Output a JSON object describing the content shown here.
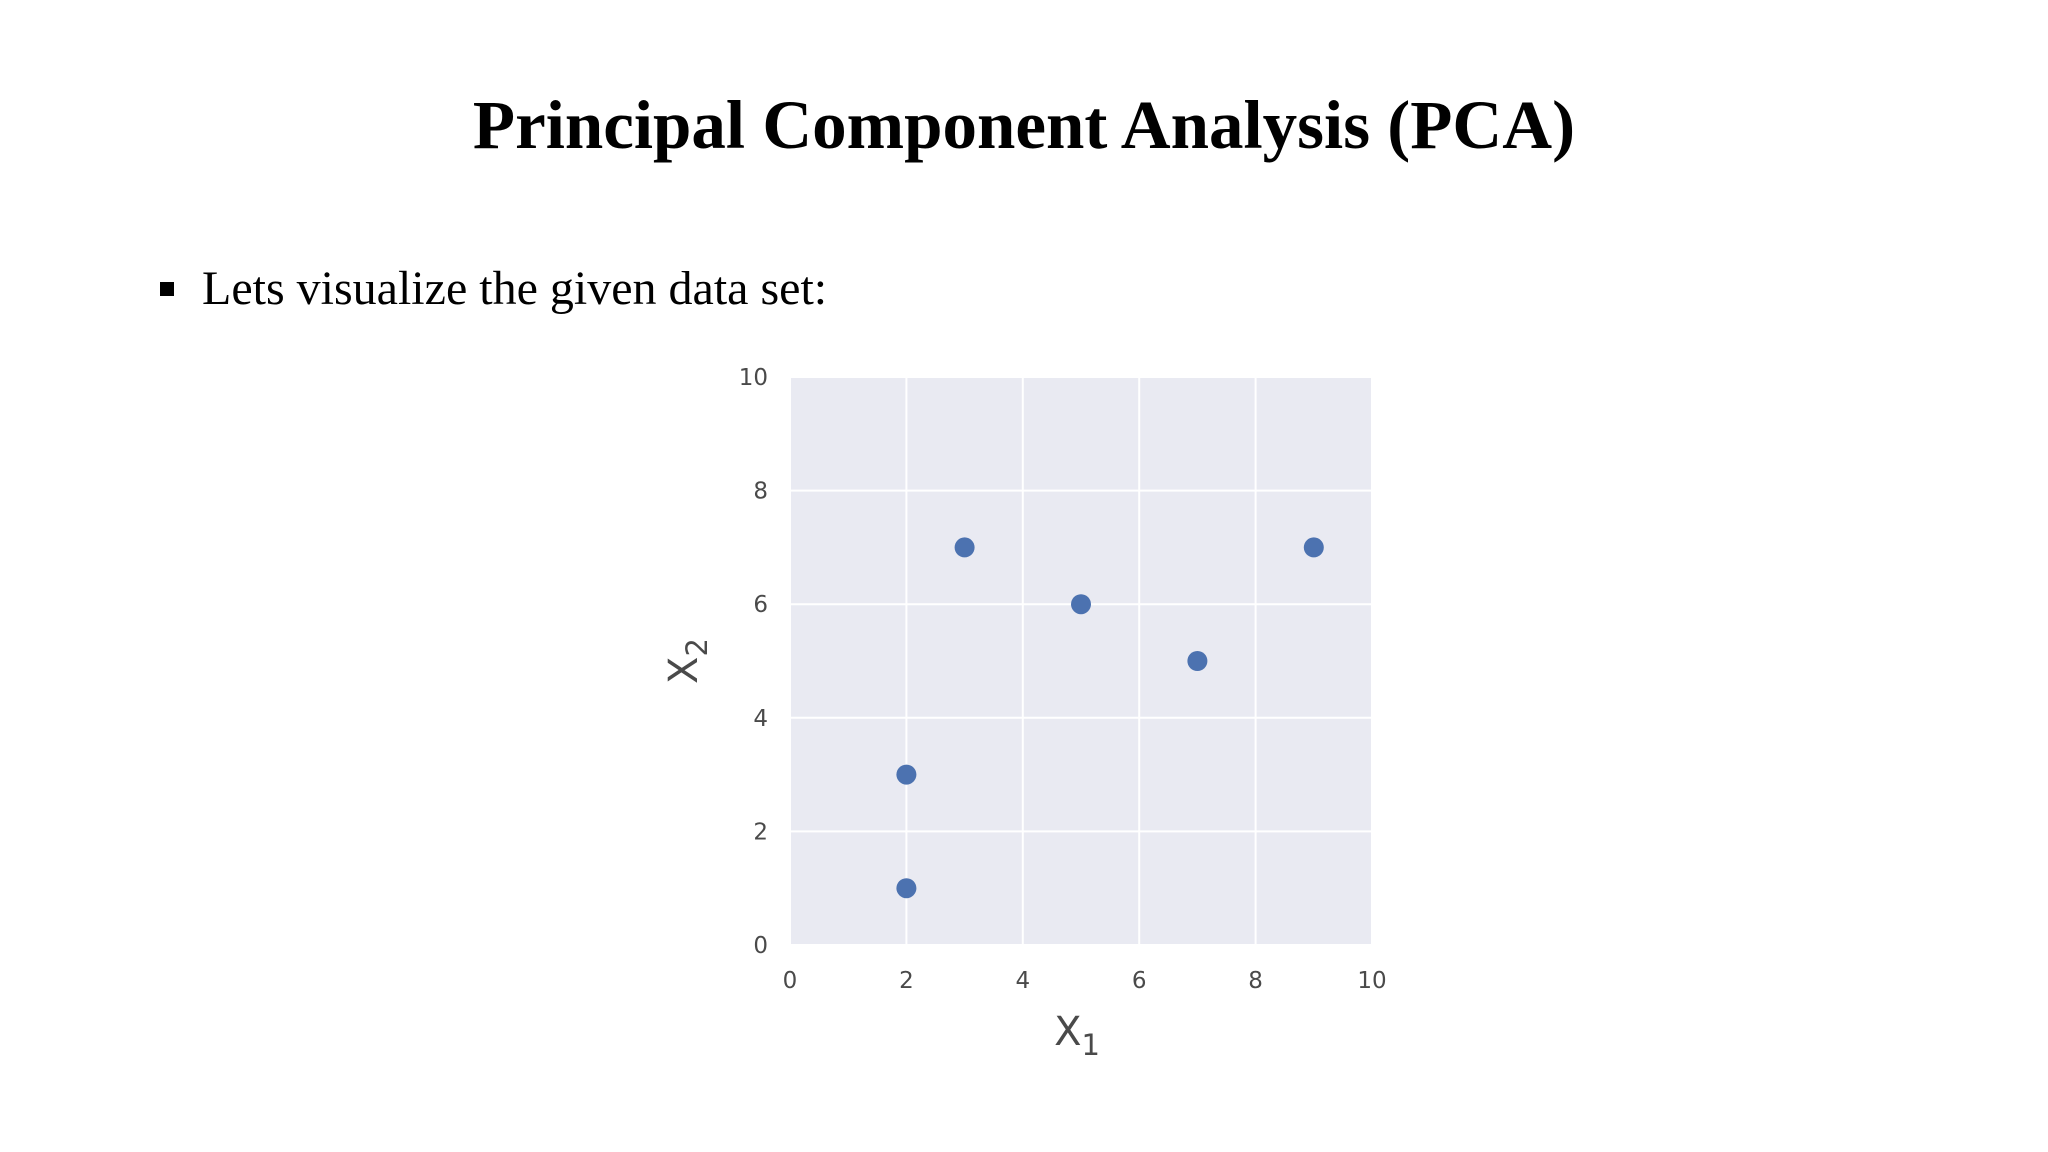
{
  "slide": {
    "title": "Principal Component Analysis (PCA)",
    "bullet": "Lets visualize the given data set:"
  },
  "chart_data": {
    "type": "scatter",
    "x": [
      2,
      2,
      3,
      5,
      7,
      9
    ],
    "y": [
      1,
      3,
      7,
      6,
      5,
      7
    ],
    "xlabel": "X",
    "xlabel_sub": "1",
    "ylabel": "X",
    "ylabel_sub": "2",
    "xlim": [
      0,
      10
    ],
    "ylim": [
      0,
      10
    ],
    "xticks": [
      0,
      2,
      4,
      6,
      8,
      10
    ],
    "yticks": [
      0,
      2,
      4,
      6,
      8,
      10
    ],
    "grid": true,
    "plot_background": "#e9eaf2",
    "marker_color": "#4c72b0"
  }
}
